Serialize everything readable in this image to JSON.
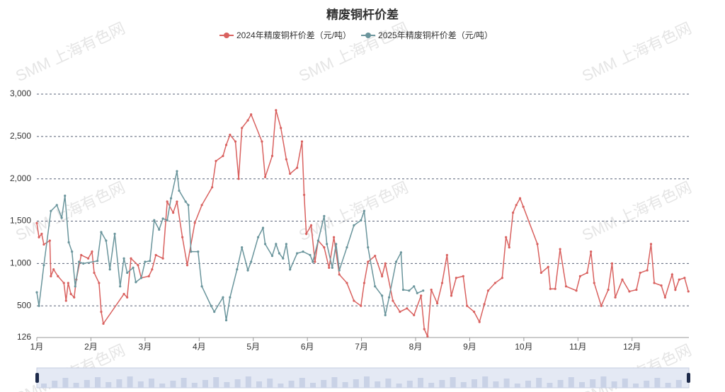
{
  "chart_data": {
    "type": "line",
    "title": "精废铜杆价差",
    "watermark": "SMM 上海有色网",
    "xlim": [
      1,
      13.05
    ],
    "xticks": [
      {
        "value": 1,
        "label": "1月"
      },
      {
        "value": 2,
        "label": "2月"
      },
      {
        "value": 3,
        "label": "3月"
      },
      {
        "value": 4,
        "label": "4月"
      },
      {
        "value": 5,
        "label": "5月"
      },
      {
        "value": 6,
        "label": "6月"
      },
      {
        "value": 7,
        "label": "7月"
      },
      {
        "value": 8,
        "label": "8月"
      },
      {
        "value": 9,
        "label": "9月"
      },
      {
        "value": 10,
        "label": "10月"
      },
      {
        "value": 11,
        "label": "11月"
      },
      {
        "value": 12,
        "label": "12月"
      }
    ],
    "ylim": [
      126,
      3000
    ],
    "yticks": [
      126,
      500,
      {
        "value": 1000,
        "label": "1,000"
      },
      {
        "value": 1500,
        "label": "1,500"
      },
      {
        "value": 2000,
        "label": "2,000"
      },
      {
        "value": 2500,
        "label": "2,500"
      },
      {
        "value": 3000,
        "label": "3,000"
      }
    ],
    "grid": true,
    "series": [
      {
        "name": "2024年精废铜杆价差（元/吨）",
        "color": "#d9615f",
        "x": [
          1.0,
          1.04,
          1.09,
          1.13,
          1.24,
          1.26,
          1.31,
          1.39,
          1.5,
          1.54,
          1.58,
          1.63,
          1.69,
          1.73,
          1.82,
          1.95,
          2.02,
          2.06,
          2.15,
          2.19,
          2.23,
          2.61,
          2.67,
          2.74,
          2.87,
          2.93,
          3.07,
          3.13,
          3.2,
          3.33,
          3.41,
          3.52,
          3.59,
          3.69,
          3.78,
          3.92,
          4.05,
          4.24,
          4.31,
          4.44,
          4.5,
          4.57,
          4.67,
          4.73,
          4.79,
          4.9,
          4.96,
          5.16,
          5.22,
          5.35,
          5.42,
          5.51,
          5.61,
          5.68,
          5.81,
          5.9,
          5.94,
          5.98,
          6.07,
          6.14,
          6.2,
          6.31,
          6.4,
          6.49,
          6.59,
          6.73,
          6.86,
          6.99,
          7.05,
          7.12,
          7.25,
          7.38,
          7.44,
          7.58,
          7.71,
          7.84,
          7.97,
          8.1,
          8.16,
          8.22,
          8.29,
          8.4,
          8.49,
          8.58,
          8.66,
          8.75,
          8.88,
          8.95,
          9.08,
          9.18,
          9.27,
          9.34,
          9.47,
          9.6,
          9.67,
          9.73,
          9.8,
          9.86,
          9.93,
          9.99,
          10.25,
          10.32,
          10.45,
          10.49,
          10.58,
          10.67,
          10.78,
          10.97,
          11.04,
          11.17,
          11.24,
          11.3,
          11.43,
          11.56,
          11.63,
          11.69,
          11.82,
          11.95,
          12.08,
          12.15,
          12.28,
          12.35,
          12.41,
          12.54,
          12.61,
          12.74,
          12.8,
          12.87,
          12.97,
          13.04
        ],
        "values": [
          1478,
          1310,
          1350,
          1225,
          1270,
          850,
          930,
          850,
          770,
          560,
          770,
          640,
          600,
          810,
          1100,
          1060,
          1140,
          890,
          770,
          430,
          290,
          640,
          600,
          1060,
          980,
          830,
          850,
          930,
          1100,
          1060,
          1730,
          1600,
          1730,
          1310,
          980,
          1480,
          1690,
          1900,
          2210,
          2270,
          2400,
          2520,
          2440,
          2000,
          2600,
          2690,
          2760,
          2440,
          2020,
          2270,
          2810,
          2600,
          2230,
          2060,
          2130,
          2440,
          1810,
          1350,
          1450,
          1020,
          1270,
          1190,
          950,
          1310,
          870,
          770,
          560,
          500,
          770,
          1020,
          1090,
          850,
          1000,
          560,
          430,
          470,
          390,
          620,
          225,
          140,
          690,
          530,
          770,
          1100,
          620,
          830,
          850,
          500,
          430,
          310,
          520,
          680,
          770,
          830,
          1310,
          1190,
          1600,
          1690,
          1770,
          1670,
          1230,
          890,
          960,
          700,
          700,
          1170,
          730,
          680,
          850,
          890,
          1140,
          770,
          500,
          690,
          1000,
          600,
          810,
          670,
          690,
          890,
          920,
          1230,
          770,
          740,
          600,
          870,
          690,
          810,
          830,
          670
        ]
      },
      {
        "name": "2025年精废铜杆价差（元/吨）",
        "color": "#6a959c",
        "x": [
          1.0,
          1.04,
          1.13,
          1.26,
          1.37,
          1.46,
          1.52,
          1.59,
          1.65,
          1.71,
          1.78,
          1.86,
          2.12,
          2.19,
          2.28,
          2.35,
          2.44,
          2.54,
          2.61,
          2.67,
          2.78,
          2.83,
          2.93,
          3.0,
          3.09,
          3.17,
          3.26,
          3.33,
          3.41,
          3.48,
          3.59,
          3.63,
          3.75,
          3.8,
          3.85,
          3.98,
          4.05,
          4.22,
          4.28,
          4.44,
          4.5,
          4.57,
          4.7,
          4.79,
          4.9,
          4.96,
          5.09,
          5.18,
          5.22,
          5.35,
          5.42,
          5.48,
          5.55,
          5.61,
          5.68,
          5.81,
          5.92,
          6.05,
          6.1,
          6.2,
          6.31,
          6.36,
          6.46,
          6.53,
          6.59,
          6.73,
          6.86,
          6.99,
          7.05,
          7.12,
          7.25,
          7.38,
          7.44,
          7.51,
          7.64,
          7.73,
          7.77,
          7.88,
          7.97,
          8.03,
          8.14
        ],
        "values": [
          660,
          500,
          980,
          1620,
          1690,
          1540,
          1800,
          1250,
          1140,
          730,
          1020,
          1000,
          1030,
          1370,
          1270,
          930,
          1350,
          730,
          1060,
          890,
          950,
          780,
          830,
          1020,
          1030,
          1510,
          1400,
          1530,
          1510,
          1770,
          2090,
          1860,
          1730,
          1690,
          1140,
          1140,
          730,
          500,
          430,
          600,
          330,
          600,
          930,
          1190,
          920,
          1020,
          1310,
          1420,
          1230,
          1090,
          1230,
          1120,
          1060,
          1230,
          930,
          1120,
          1140,
          1100,
          1020,
          1270,
          1560,
          1230,
          950,
          1230,
          920,
          1190,
          1450,
          1510,
          1620,
          1190,
          730,
          620,
          390,
          600,
          1020,
          1130,
          690,
          680,
          730,
          650,
          680
        ]
      }
    ]
  }
}
